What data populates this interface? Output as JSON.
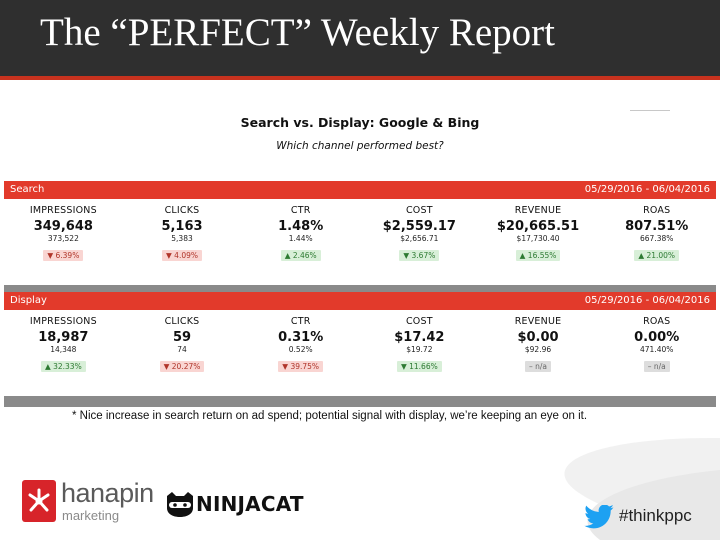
{
  "slide": {
    "title": "The “PERFECT” Weekly Report"
  },
  "report": {
    "title": "Search vs. Display: Google & Bing",
    "subtitle": "Which channel performed best?"
  },
  "sections": [
    {
      "name": "Search",
      "date_range": "05/29/2016 - 06/04/2016",
      "metrics": [
        {
          "label": "IMPRESSIONS",
          "value": "349,648",
          "previous": "373,522",
          "change": "▼ 6.39%",
          "trend": "down"
        },
        {
          "label": "CLICKS",
          "value": "5,163",
          "previous": "5,383",
          "change": "▼ 4.09%",
          "trend": "down"
        },
        {
          "label": "CTR",
          "value": "1.48%",
          "previous": "1.44%",
          "change": "▲ 2.46%",
          "trend": "up"
        },
        {
          "label": "COST",
          "value": "$2,559.17",
          "previous": "$2,656.71",
          "change": "▼ 3.67%",
          "trend": "up"
        },
        {
          "label": "REVENUE",
          "value": "$20,665.51",
          "previous": "$17,730.40",
          "change": "▲ 16.55%",
          "trend": "up"
        },
        {
          "label": "ROAS",
          "value": "807.51%",
          "previous": "667.38%",
          "change": "▲ 21.00%",
          "trend": "up"
        }
      ]
    },
    {
      "name": "Display",
      "date_range": "05/29/2016 - 06/04/2016",
      "metrics": [
        {
          "label": "IMPRESSIONS",
          "value": "18,987",
          "previous": "14,348",
          "change": "▲ 32.33%",
          "trend": "up"
        },
        {
          "label": "CLICKS",
          "value": "59",
          "previous": "74",
          "change": "▼ 20.27%",
          "trend": "down"
        },
        {
          "label": "CTR",
          "value": "0.31%",
          "previous": "0.52%",
          "change": "▼ 39.75%",
          "trend": "down"
        },
        {
          "label": "COST",
          "value": "$17.42",
          "previous": "$19.72",
          "change": "▼ 11.66%",
          "trend": "up"
        },
        {
          "label": "REVENUE",
          "value": "$0.00",
          "previous": "$92.96",
          "change": "– n/a",
          "trend": "na"
        },
        {
          "label": "ROAS",
          "value": "0.00%",
          "previous": "471.40%",
          "change": "– n/a",
          "trend": "na"
        }
      ]
    }
  ],
  "footnote": "* Nice increase in search return on ad spend; potential signal with display, we’re keeping an eye on it.",
  "footer": {
    "hanapin_word": "hanapin",
    "hanapin_sub": "marketing",
    "ninjacat_word": "NINJACAT",
    "hashtag": "#thinkppc"
  },
  "colors": {
    "header_bg": "#2f2f2f",
    "accent_red": "#e23a2b",
    "divider_gray": "#8a8a8a",
    "change_down_bg": "#f9d5d2",
    "change_up_bg": "#d8efd8",
    "change_na_bg": "#dddddd",
    "twitter_blue": "#1da1f2"
  }
}
